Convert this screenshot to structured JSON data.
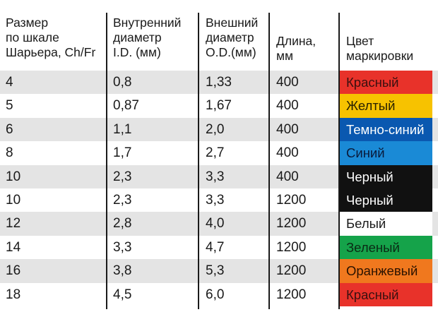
{
  "headers": {
    "size": [
      "Размер",
      "по шкале",
      "Шарьера, Ch/Fr"
    ],
    "inner": [
      "Внутренний",
      "диаметр",
      "I.D. (мм)"
    ],
    "outer": [
      "Внешний",
      "диаметр",
      "O.D.(мм)"
    ],
    "length": [
      "Длина,",
      "мм"
    ],
    "color": [
      "Цвет",
      "маркировки"
    ]
  },
  "rows": [
    {
      "size": "4",
      "inner": "0,8",
      "outer": "1,33",
      "length": "400",
      "color": "Красный",
      "bg": "#e8322a",
      "fg": "#3a1010"
    },
    {
      "size": "5",
      "inner": "0,87",
      "outer": "1,67",
      "length": "400",
      "color": "Желтый",
      "bg": "#f7c200",
      "fg": "#2a2200"
    },
    {
      "size": "6",
      "inner": "1,1",
      "outer": "2,0",
      "length": "400",
      "color": "Темно-синий",
      "bg": "#0a58b0",
      "fg": "#ffffff"
    },
    {
      "size": "8",
      "inner": "1,7",
      "outer": "2,7",
      "length": "400",
      "color": "Синий",
      "bg": "#1a8ad6",
      "fg": "#0a1a3a"
    },
    {
      "size": "10",
      "inner": "2,3",
      "outer": "3,3",
      "length": "400",
      "color": "Черный",
      "bg": "#111111",
      "fg": "#ffffff"
    },
    {
      "size": "10",
      "inner": "2,3",
      "outer": "3,3",
      "length": "1200",
      "color": "Черный",
      "bg": "#111111",
      "fg": "#ffffff"
    },
    {
      "size": "12",
      "inner": "2,8",
      "outer": "4,0",
      "length": "1200",
      "color": "Белый",
      "bg": "#ffffff",
      "fg": "#1a1a1a"
    },
    {
      "size": "14",
      "inner": "3,3",
      "outer": "4,7",
      "length": "1200",
      "color": "Зеленый",
      "bg": "#15a34a",
      "fg": "#0a2a14"
    },
    {
      "size": "16",
      "inner": "3,8",
      "outer": "5,3",
      "length": "1200",
      "color": "Оранжевый",
      "bg": "#f0781e",
      "fg": "#2a1200"
    },
    {
      "size": "18",
      "inner": "4,5",
      "outer": "6,0",
      "length": "1200",
      "color": "Красный",
      "bg": "#e8322a",
      "fg": "#3a1010"
    }
  ]
}
